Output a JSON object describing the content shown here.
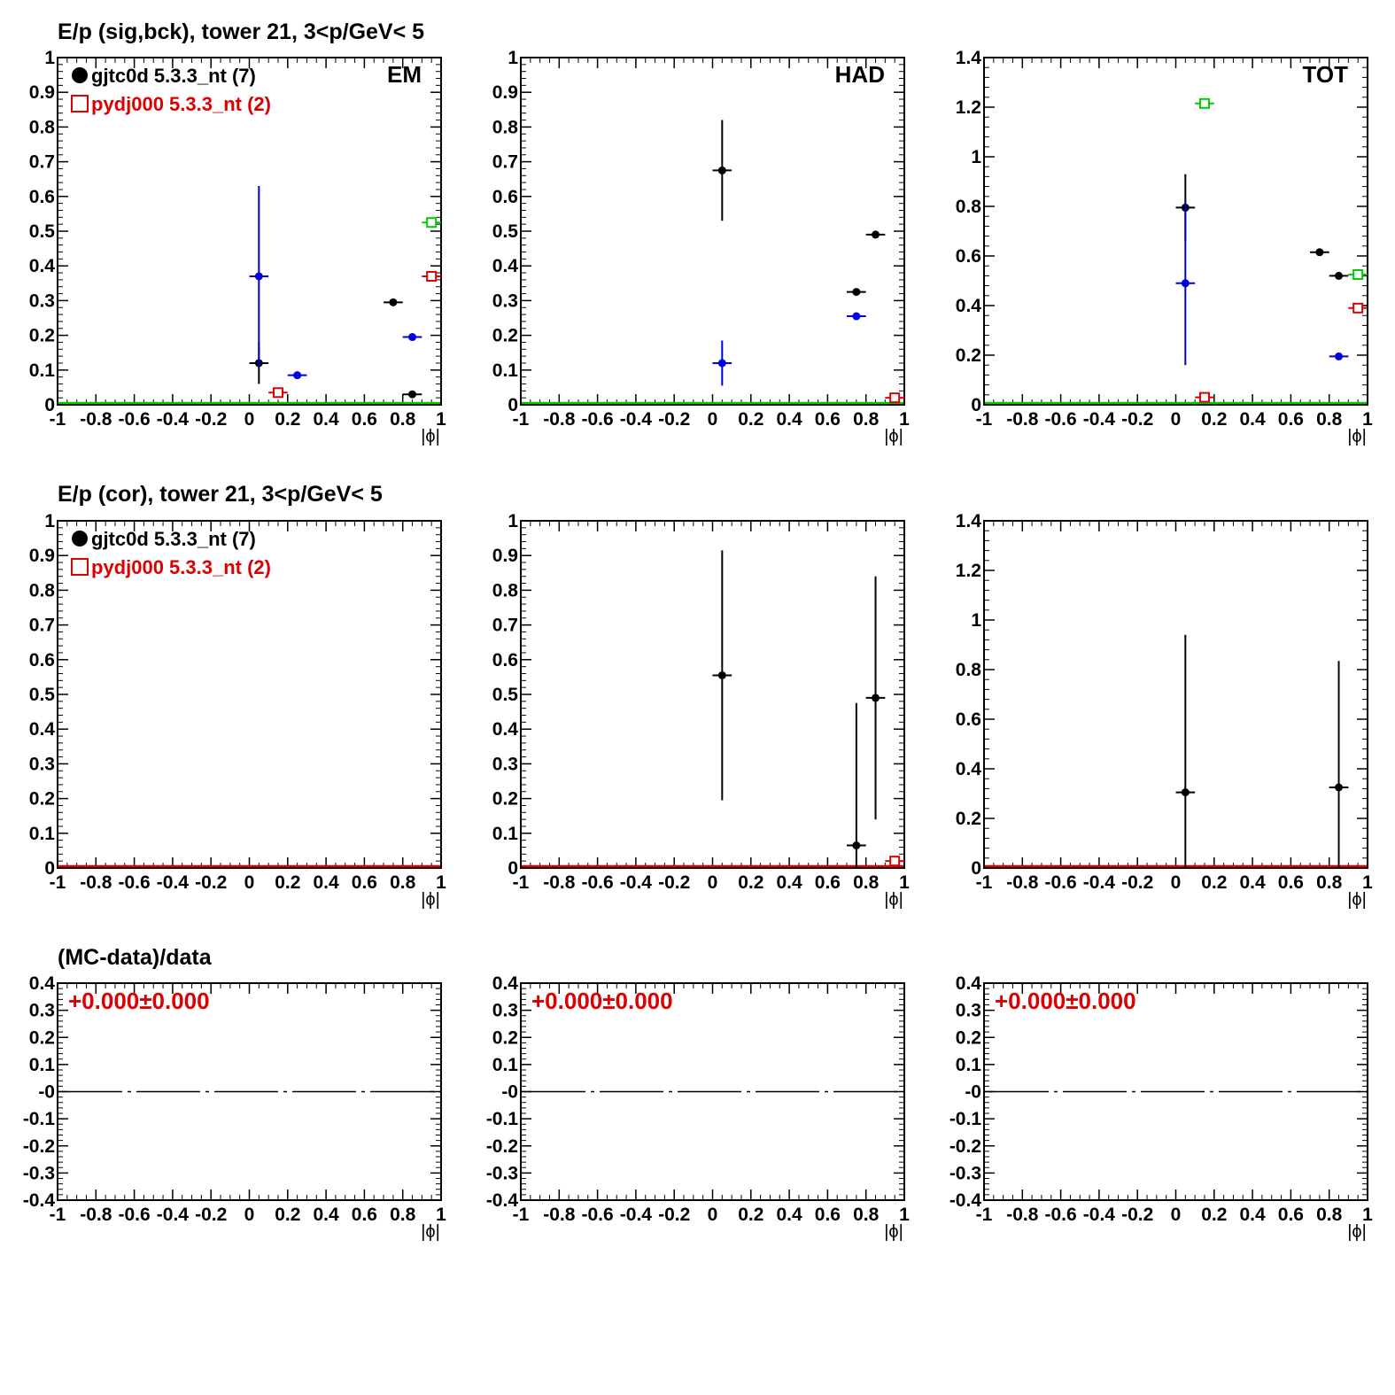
{
  "colors": {
    "black": "#000000",
    "red": "#dd0000",
    "blue": "#0000dd",
    "green": "#00cc00"
  },
  "rows": [
    {
      "title": "E/p (sig,bck), tower 21,  3<p/GeV< 5"
    },
    {
      "title": "E/p (cor), tower 21,  3<p/GeV< 5"
    },
    {
      "title": "(MC-data)/data"
    }
  ],
  "legend": {
    "entries": [
      {
        "label": "gjtc0d 5.3.3_nt (7)",
        "marker": "filled-circle",
        "color": "#000000"
      },
      {
        "label": "pydj000 5.3.3_nt (2)",
        "marker": "open-square",
        "color": "#dd0000"
      }
    ]
  },
  "chart_data": [
    {
      "id": "sig-em",
      "type": "scatter",
      "panel_label": "EM",
      "xlabel": "|ϕ|",
      "xlim": [
        -1,
        1
      ],
      "ylim": [
        0,
        1
      ],
      "xticks": [
        "-1",
        "-0.8",
        "-0.6",
        "-0.4",
        "-0.2",
        "0",
        "0.2",
        "0.4",
        "0.6",
        "0.8",
        "1"
      ],
      "yticks": [
        [
          "0",
          0
        ],
        [
          "0.1",
          0.1
        ],
        [
          "0.2",
          0.2
        ],
        [
          "0.3",
          0.3
        ],
        [
          "0.4",
          0.4
        ],
        [
          "0.5",
          0.5
        ],
        [
          "0.6",
          0.6
        ],
        [
          "0.7",
          0.7
        ],
        [
          "0.8",
          0.8
        ],
        [
          "0.9",
          0.9
        ],
        [
          "1",
          1
        ]
      ],
      "series": [
        {
          "color": "#000000",
          "marker": "dot",
          "points": [
            [
              0.05,
              0.12,
              0.06
            ],
            [
              0.75,
              0.295,
              0
            ],
            [
              0.85,
              0.03,
              0
            ]
          ]
        },
        {
          "color": "#0000dd",
          "marker": "dot",
          "points": [
            [
              0.05,
              0.37,
              0.26
            ],
            [
              0.25,
              0.085,
              0
            ],
            [
              0.85,
              0.195,
              0
            ]
          ]
        },
        {
          "color": "#dd0000",
          "marker": "square",
          "points": [
            [
              0.15,
              0.035,
              0
            ],
            [
              0.95,
              0.37,
              0
            ]
          ]
        },
        {
          "color": "#00cc00",
          "marker": "square",
          "points": [
            [
              0.95,
              0.525,
              0
            ]
          ]
        }
      ],
      "baseline_color": "#00cc00"
    },
    {
      "id": "sig-had",
      "type": "scatter",
      "panel_label": "HAD",
      "xlabel": "|ϕ|",
      "xlim": [
        -1,
        1
      ],
      "ylim": [
        0,
        1
      ],
      "xticks": [
        "-1",
        "-0.8",
        "-0.6",
        "-0.4",
        "-0.2",
        "0",
        "0.2",
        "0.4",
        "0.6",
        "0.8",
        "1"
      ],
      "yticks": [
        [
          "0",
          0
        ],
        [
          "0.1",
          0.1
        ],
        [
          "0.2",
          0.2
        ],
        [
          "0.3",
          0.3
        ],
        [
          "0.4",
          0.4
        ],
        [
          "0.5",
          0.5
        ],
        [
          "0.6",
          0.6
        ],
        [
          "0.7",
          0.7
        ],
        [
          "0.8",
          0.8
        ],
        [
          "0.9",
          0.9
        ],
        [
          "1",
          1
        ]
      ],
      "series": [
        {
          "color": "#000000",
          "marker": "dot",
          "points": [
            [
              0.05,
              0.675,
              0.145
            ],
            [
              0.75,
              0.325,
              0
            ],
            [
              0.85,
              0.49,
              0
            ]
          ]
        },
        {
          "color": "#0000dd",
          "marker": "dot",
          "points": [
            [
              0.05,
              0.12,
              0.065
            ],
            [
              0.75,
              0.255,
              0
            ]
          ]
        },
        {
          "color": "#dd0000",
          "marker": "square",
          "points": [
            [
              0.95,
              0.02,
              0
            ]
          ]
        }
      ],
      "baseline_color": "#00cc00"
    },
    {
      "id": "sig-tot",
      "type": "scatter",
      "panel_label": "TOT",
      "xlabel": "|ϕ|",
      "xlim": [
        -1,
        1
      ],
      "ylim": [
        0,
        1.4
      ],
      "xticks": [
        "-1",
        "-0.8",
        "-0.6",
        "-0.4",
        "-0.2",
        "0",
        "0.2",
        "0.4",
        "0.6",
        "0.8",
        "1"
      ],
      "yticks": [
        [
          "0",
          0
        ],
        [
          "0.2",
          0.2
        ],
        [
          "0.4",
          0.4
        ],
        [
          "0.6",
          0.6
        ],
        [
          "0.8",
          0.8
        ],
        [
          "1",
          1
        ],
        [
          "1.2",
          1.2
        ],
        [
          "1.4",
          1.4
        ]
      ],
      "series": [
        {
          "color": "#000000",
          "marker": "dot",
          "points": [
            [
              0.05,
              0.795,
              0.135
            ],
            [
              0.75,
              0.615,
              0
            ],
            [
              0.85,
              0.52,
              0
            ]
          ]
        },
        {
          "color": "#0000dd",
          "marker": "dot",
          "points": [
            [
              0.05,
              0.49,
              0.33
            ],
            [
              0.85,
              0.195,
              0
            ]
          ]
        },
        {
          "color": "#dd0000",
          "marker": "square",
          "points": [
            [
              0.15,
              0.03,
              0
            ],
            [
              0.95,
              0.39,
              0
            ]
          ]
        },
        {
          "color": "#00cc00",
          "marker": "square",
          "points": [
            [
              0.15,
              1.215,
              0
            ],
            [
              0.95,
              0.525,
              0
            ]
          ]
        }
      ],
      "baseline_color": "#00cc00"
    },
    {
      "id": "cor-em",
      "type": "scatter",
      "panel_label": "",
      "xlabel": "|ϕ|",
      "xlim": [
        -1,
        1
      ],
      "ylim": [
        0,
        1
      ],
      "xticks": [
        "-1",
        "-0.8",
        "-0.6",
        "-0.4",
        "-0.2",
        "0",
        "0.2",
        "0.4",
        "0.6",
        "0.8",
        "1"
      ],
      "yticks": [
        [
          "0",
          0
        ],
        [
          "0.1",
          0.1
        ],
        [
          "0.2",
          0.2
        ],
        [
          "0.3",
          0.3
        ],
        [
          "0.4",
          0.4
        ],
        [
          "0.5",
          0.5
        ],
        [
          "0.6",
          0.6
        ],
        [
          "0.7",
          0.7
        ],
        [
          "0.8",
          0.8
        ],
        [
          "0.9",
          0.9
        ],
        [
          "1",
          1
        ]
      ],
      "series": [],
      "baseline_color": "#dd0000"
    },
    {
      "id": "cor-had",
      "type": "scatter",
      "panel_label": "",
      "xlabel": "|ϕ|",
      "xlim": [
        -1,
        1
      ],
      "ylim": [
        0,
        1
      ],
      "xticks": [
        "-1",
        "-0.8",
        "-0.6",
        "-0.4",
        "-0.2",
        "0",
        "0.2",
        "0.4",
        "0.6",
        "0.8",
        "1"
      ],
      "yticks": [
        [
          "0",
          0
        ],
        [
          "0.1",
          0.1
        ],
        [
          "0.2",
          0.2
        ],
        [
          "0.3",
          0.3
        ],
        [
          "0.4",
          0.4
        ],
        [
          "0.5",
          0.5
        ],
        [
          "0.6",
          0.6
        ],
        [
          "0.7",
          0.7
        ],
        [
          "0.8",
          0.8
        ],
        [
          "0.9",
          0.9
        ],
        [
          "1",
          1
        ]
      ],
      "series": [
        {
          "color": "#000000",
          "marker": "dot",
          "points": [
            [
              0.05,
              0.555,
              0.36
            ],
            [
              0.75,
              0.065,
              0.41
            ],
            [
              0.85,
              0.49,
              0.35
            ]
          ]
        },
        {
          "color": "#dd0000",
          "marker": "square",
          "points": [
            [
              0.95,
              0.02,
              0
            ]
          ]
        }
      ],
      "baseline_color": "#dd0000"
    },
    {
      "id": "cor-tot",
      "type": "scatter",
      "panel_label": "",
      "xlabel": "|ϕ|",
      "xlim": [
        -1,
        1
      ],
      "ylim": [
        0,
        1.4
      ],
      "xticks": [
        "-1",
        "-0.8",
        "-0.6",
        "-0.4",
        "-0.2",
        "0",
        "0.2",
        "0.4",
        "0.6",
        "0.8",
        "1"
      ],
      "yticks": [
        [
          "0",
          0
        ],
        [
          "0.2",
          0.2
        ],
        [
          "0.4",
          0.4
        ],
        [
          "0.6",
          0.6
        ],
        [
          "0.8",
          0.8
        ],
        [
          "1",
          1
        ],
        [
          "1.2",
          1.2
        ],
        [
          "1.4",
          1.4
        ]
      ],
      "series": [
        {
          "color": "#000000",
          "marker": "dot",
          "points": [
            [
              0.05,
              0.305,
              0.635
            ],
            [
              0.85,
              0.325,
              0.51
            ]
          ]
        }
      ],
      "baseline_color": "#dd0000"
    },
    {
      "id": "ratio-em",
      "type": "line",
      "panel_label": "",
      "xlabel": "|ϕ|",
      "xlim": [
        -1,
        1
      ],
      "ylim": [
        -0.4,
        0.4
      ],
      "xticks": [
        "-1",
        "-0.8",
        "-0.6",
        "-0.4",
        "-0.2",
        "0",
        "0.2",
        "0.4",
        "0.6",
        "0.8",
        "1"
      ],
      "yticks": [
        [
          "-0.4",
          -0.4
        ],
        [
          "-0.3",
          -0.3
        ],
        [
          "-0.2",
          -0.2
        ],
        [
          "-0.1",
          -0.1
        ],
        [
          "-0",
          0
        ],
        [
          "0.1",
          0.1
        ],
        [
          "0.2",
          0.2
        ],
        [
          "0.3",
          0.3
        ],
        [
          "0.4",
          0.4
        ]
      ],
      "series": [],
      "ratio_text": "+0.000±0.000",
      "zero_line": true
    },
    {
      "id": "ratio-had",
      "type": "line",
      "panel_label": "",
      "xlabel": "|ϕ|",
      "xlim": [
        -1,
        1
      ],
      "ylim": [
        -0.4,
        0.4
      ],
      "xticks": [
        "-1",
        "-0.8",
        "-0.6",
        "-0.4",
        "-0.2",
        "0",
        "0.2",
        "0.4",
        "0.6",
        "0.8",
        "1"
      ],
      "yticks": [
        [
          "-0.4",
          -0.4
        ],
        [
          "-0.3",
          -0.3
        ],
        [
          "-0.2",
          -0.2
        ],
        [
          "-0.1",
          -0.1
        ],
        [
          "-0",
          0
        ],
        [
          "0.1",
          0.1
        ],
        [
          "0.2",
          0.2
        ],
        [
          "0.3",
          0.3
        ],
        [
          "0.4",
          0.4
        ]
      ],
      "series": [],
      "ratio_text": "+0.000±0.000",
      "zero_line": true
    },
    {
      "id": "ratio-tot",
      "type": "line",
      "panel_label": "",
      "xlabel": "|ϕ|",
      "xlim": [
        -1,
        1
      ],
      "ylim": [
        -0.4,
        0.4
      ],
      "xticks": [
        "-1",
        "-0.8",
        "-0.6",
        "-0.4",
        "-0.2",
        "0",
        "0.2",
        "0.4",
        "0.6",
        "0.8",
        "1"
      ],
      "yticks": [
        [
          "-0.4",
          -0.4
        ],
        [
          "-0.3",
          -0.3
        ],
        [
          "-0.2",
          -0.2
        ],
        [
          "-0.1",
          -0.1
        ],
        [
          "-0",
          0
        ],
        [
          "0.1",
          0.1
        ],
        [
          "0.2",
          0.2
        ],
        [
          "0.3",
          0.3
        ],
        [
          "0.4",
          0.4
        ]
      ],
      "series": [],
      "ratio_text": "+0.000±0.000",
      "zero_line": true
    }
  ]
}
